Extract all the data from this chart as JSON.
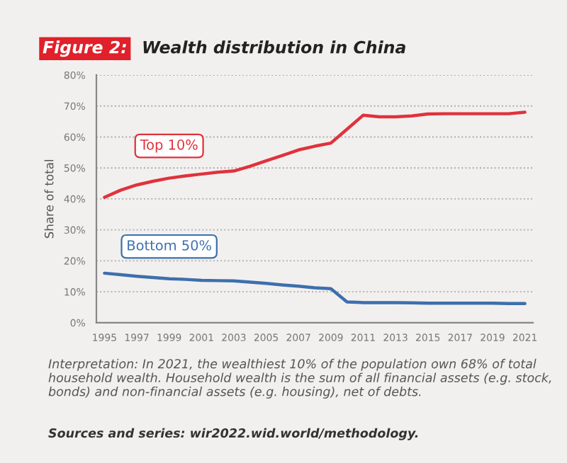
{
  "chart_data": {
    "type": "line",
    "title": "Wealth distribution in China",
    "ylabel": "Share of total",
    "x": [
      1995,
      1996,
      1997,
      1998,
      1999,
      2000,
      2001,
      2002,
      2003,
      2004,
      2005,
      2006,
      2007,
      2008,
      2009,
      2010,
      2011,
      2012,
      2013,
      2014,
      2015,
      2016,
      2017,
      2018,
      2019,
      2020,
      2021
    ],
    "series": [
      {
        "name": "Top 10%",
        "color": "#e0323c",
        "values": [
          40.5,
          42.8,
          44.5,
          45.7,
          46.7,
          47.4,
          48,
          48.6,
          49,
          50.5,
          52.3,
          54,
          55.8,
          57,
          58,
          62.5,
          67,
          66.5,
          66.5,
          66.8,
          67.4,
          67.5,
          67.5,
          67.5,
          67.5,
          67.5,
          68
        ]
      },
      {
        "name": "Bottom 50%",
        "color": "#3d6fae",
        "values": [
          16,
          15.5,
          15,
          14.6,
          14.2,
          14,
          13.7,
          13.6,
          13.5,
          13.1,
          12.7,
          12.2,
          11.8,
          11.3,
          11,
          6.7,
          6.5,
          6.5,
          6.5,
          6.4,
          6.3,
          6.3,
          6.3,
          6.3,
          6.3,
          6.2,
          6.2
        ]
      }
    ],
    "xlim": [
      1994.5,
      2021.5
    ],
    "xticks": [
      1995,
      1997,
      1999,
      2001,
      2003,
      2005,
      2007,
      2009,
      2011,
      2013,
      2015,
      2017,
      2019,
      2021
    ],
    "ylim": [
      0,
      80
    ],
    "yticks": [
      {
        "value": 0,
        "label": "0%"
      },
      {
        "value": 10,
        "label": "10%"
      },
      {
        "value": 20,
        "label": "20%"
      },
      {
        "value": 30,
        "label": "30%"
      },
      {
        "value": 40,
        "label": "40%"
      },
      {
        "value": 50,
        "label": "50%"
      },
      {
        "value": 60,
        "label": "60%"
      },
      {
        "value": 70,
        "label": "70%"
      },
      {
        "value": 80,
        "label": "80%"
      }
    ],
    "grid": "y",
    "marker": "none",
    "line_style": "solid",
    "legend": false,
    "annotations": [
      "Figure 2:",
      "Interpretation: In 2021, the wealthiest 10% of the population own 68% of total household wealth. Household wealth is the sum of all financial assets (e.g. stock, bonds) and non-financial assets (e.g. housing), net of debts.",
      "Sources and series: wir2022.wid.world/methodology."
    ]
  }
}
